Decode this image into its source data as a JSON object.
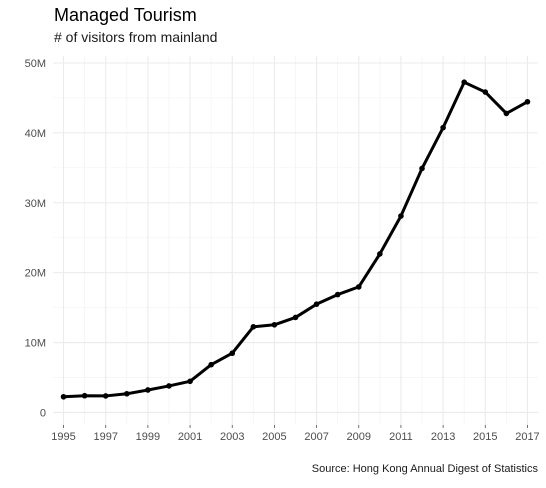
{
  "chart_data": {
    "type": "line",
    "title": "Managed Tourism",
    "subtitle": "# of visitors from mainland",
    "caption": "Source: Hong Kong Annual Digest of Statistics",
    "xlabel": "",
    "ylabel": "",
    "x": [
      1995,
      1996,
      1997,
      1998,
      1999,
      2000,
      2001,
      2002,
      2003,
      2004,
      2005,
      2006,
      2007,
      2008,
      2009,
      2010,
      2011,
      2012,
      2013,
      2014,
      2015,
      2016,
      2017
    ],
    "series": [
      {
        "values": [
          2240000,
          2390000,
          2360000,
          2670000,
          3210000,
          3790000,
          4450000,
          6830000,
          8470000,
          12250000,
          12540000,
          13590000,
          15490000,
          16860000,
          17960000,
          22680000,
          28100000,
          34910000,
          40750000,
          47250000,
          45840000,
          42780000,
          44450000
        ]
      }
    ],
    "xlim": [
      1994.5,
      2017.5
    ],
    "ylim": [
      -1800000,
      51000000
    ],
    "x_ticks": [
      1995,
      1997,
      1999,
      2001,
      2003,
      2005,
      2007,
      2009,
      2011,
      2013,
      2015,
      2017
    ],
    "x_tick_labels": [
      "1995",
      "1997",
      "1999",
      "2001",
      "2003",
      "2005",
      "2007",
      "2009",
      "2011",
      "2013",
      "2015",
      "2017"
    ],
    "y_ticks": [
      0,
      10000000,
      20000000,
      30000000,
      40000000,
      50000000
    ],
    "y_tick_labels": [
      "0",
      "10M",
      "20M",
      "30M",
      "40M",
      "50M"
    ],
    "grid": true,
    "legend": "none",
    "line_color": "#000000",
    "grid_color": "#ebebeb"
  }
}
